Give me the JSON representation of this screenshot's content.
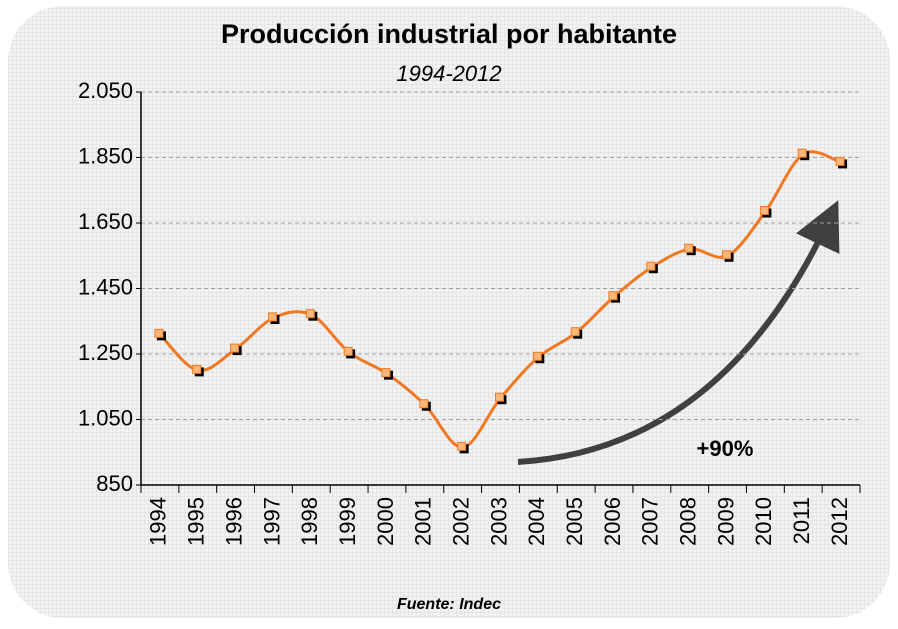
{
  "chart_data": {
    "type": "line",
    "title": "Producción industrial por habitante",
    "subtitle": "1994-2012",
    "categories": [
      "1994",
      "1995",
      "1996",
      "1997",
      "1998",
      "1999",
      "2000",
      "2001",
      "2002",
      "2003",
      "2004",
      "2005",
      "2006",
      "2007",
      "2008",
      "2009",
      "2010",
      "2011",
      "2012"
    ],
    "series": [
      {
        "name": "Producción industrial por habitante",
        "color": "#f07820",
        "values": [
          1310,
          1200,
          1265,
          1360,
          1370,
          1255,
          1190,
          1095,
          965,
          1115,
          1240,
          1315,
          1425,
          1515,
          1570,
          1550,
          1685,
          1860,
          1835
        ]
      }
    ],
    "ylim": [
      850,
      2050
    ],
    "yticks": [
      850,
      {
        "value": 1050,
        "label": "1.050"
      },
      {
        "value": 1250,
        "label": "1.250"
      },
      {
        "value": 1450,
        "label": "1.450"
      },
      {
        "value": 1650,
        "label": "1.650"
      },
      {
        "value": 1850,
        "label": "1.850"
      },
      {
        "value": 2050,
        "label": "2.050"
      }
    ],
    "grid": true,
    "annotations": [
      "+90%"
    ],
    "source": "Fuente: Indec"
  }
}
